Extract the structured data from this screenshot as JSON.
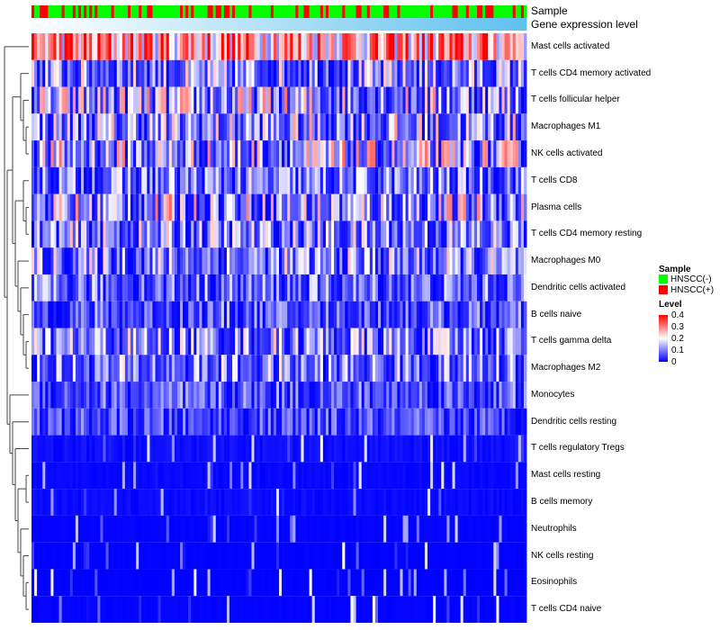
{
  "chart_data": {
    "type": "heatmap",
    "title": "",
    "annotation_labels": [
      "Sample",
      "Gene expression level"
    ],
    "rows": [
      {
        "label": "Mast cells activated",
        "mean_level": 0.3
      },
      {
        "label": "T cells CD4 memory activated",
        "mean_level": 0.08
      },
      {
        "label": "T cells follicular helper",
        "mean_level": 0.1
      },
      {
        "label": "Macrophages M1",
        "mean_level": 0.09
      },
      {
        "label": "NK cells activated",
        "mean_level": 0.1
      },
      {
        "label": "T cells CD8",
        "mean_level": 0.07
      },
      {
        "label": "Plasma cells",
        "mean_level": 0.1
      },
      {
        "label": "T cells CD4 memory resting",
        "mean_level": 0.08
      },
      {
        "label": "Macrophages M0",
        "mean_level": 0.08
      },
      {
        "label": "Dendritic cells activated",
        "mean_level": 0.06
      },
      {
        "label": "B cells naive",
        "mean_level": 0.05
      },
      {
        "label": "T cells gamma delta",
        "mean_level": 0.08
      },
      {
        "label": "Macrophages M2",
        "mean_level": 0.07
      },
      {
        "label": "Monocytes",
        "mean_level": 0.05
      },
      {
        "label": "Dendritic cells resting",
        "mean_level": 0.04
      },
      {
        "label": "T cells regulatory  Tregs",
        "mean_level": 0.02
      },
      {
        "label": "Mast cells resting",
        "mean_level": 0.01
      },
      {
        "label": "B cells memory",
        "mean_level": 0.015
      },
      {
        "label": "Neutrophils",
        "mean_level": 0.005
      },
      {
        "label": "NK cells resting",
        "mean_level": 0.003
      },
      {
        "label": "Eosinophils",
        "mean_level": 0.002
      },
      {
        "label": "T cells CD4 naive",
        "mean_level": 0.005
      }
    ],
    "sample_fraction_positive": 0.25,
    "color_scale": {
      "min": 0,
      "mid": 0.2,
      "max": 0.4,
      "low": "#0000ff",
      "midcolor": "#ffffff",
      "high": "#ff0000"
    },
    "legend": {
      "sample_title": "Sample",
      "sample_entries": [
        {
          "label": "HNSCC(-)",
          "color": "#00ff00"
        },
        {
          "label": "HNSCC(+)",
          "color": "#ff0000"
        }
      ],
      "level_title": "Level",
      "level_ticks": [
        "0.4",
        "0.3",
        "0.2",
        "0.1",
        "0"
      ],
      "placement": "right"
    },
    "dendrogram": [
      0,
      [
        [
          [
            1,
            [
              2,
              [
                3,
                4
              ]
            ]
          ],
          [
            [
              5,
              [
                6,
                7
              ]
            ],
            [
              8,
              [
                9,
                [
                  10,
                  [
                    11,
                    12
                  ]
                ]
              ]
            ]
          ]
        ],
        [
          13,
          [
            14,
            [
              15,
              [
                [
                  16,
                  17
                ],
                [
                  18,
                  [
                    19,
                    [
                      20,
                      21
                    ]
                  ]
                ]
              ]
            ]
          ]
        ]
      ]
    ]
  }
}
